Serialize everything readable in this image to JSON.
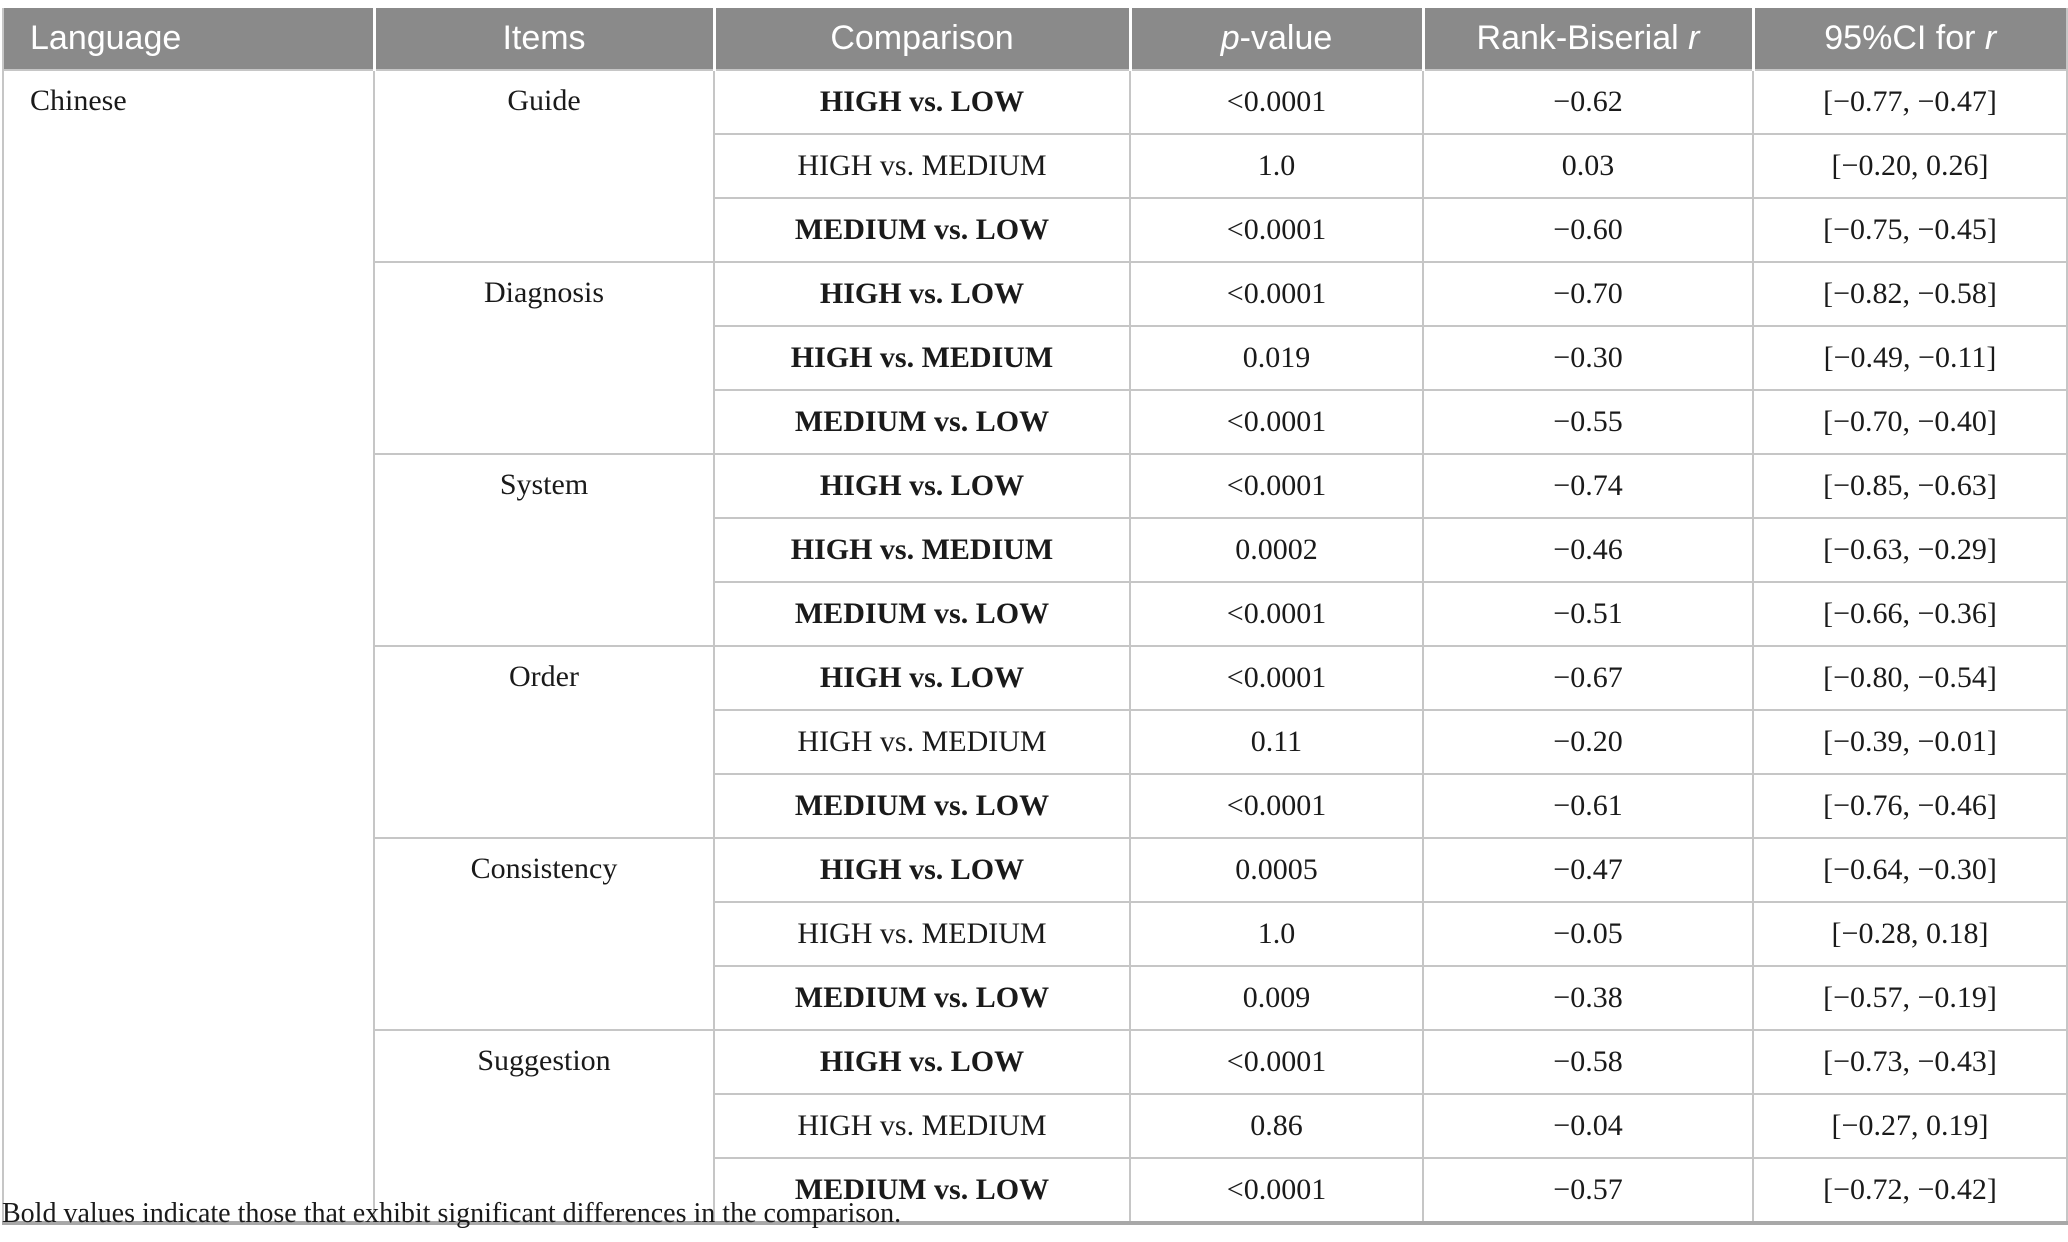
{
  "colors": {
    "header_bg": "#8a8a8a",
    "header_fg": "#ffffff",
    "grid": "#c6c6c6",
    "text": "#1a1a1a",
    "table_bottom_border": "#a8a8a8",
    "page_bg": "#ffffff"
  },
  "table": {
    "columns": [
      {
        "id": "language",
        "label": "Language"
      },
      {
        "id": "items",
        "label": "Items"
      },
      {
        "id": "comparison",
        "label": "Comparison"
      },
      {
        "id": "p-value",
        "label": "p-value",
        "segments": [
          {
            "text": "p",
            "italic": true
          },
          {
            "text": "-value"
          }
        ]
      },
      {
        "id": "rank-biserial-r",
        "label": "Rank-Biserial r",
        "segments": [
          {
            "text": "Rank-Biserial "
          },
          {
            "text": "r",
            "italic": true
          }
        ]
      },
      {
        "id": "ci-for-r",
        "label": "95%CI for r",
        "segments": [
          {
            "text": "95%CI for "
          },
          {
            "text": "r",
            "italic": true
          }
        ]
      }
    ],
    "language": "Chinese",
    "groups": [
      {
        "item": "Guide",
        "rows": [
          {
            "comparison": "HIGH vs. LOW",
            "bold": true,
            "p": "<0.0001",
            "r": "−0.62",
            "ci": "[−0.77, −0.47]"
          },
          {
            "comparison": "HIGH vs. MEDIUM",
            "bold": false,
            "p": "1.0",
            "r": "0.03",
            "ci": "[−0.20, 0.26]"
          },
          {
            "comparison": "MEDIUM vs. LOW",
            "bold": true,
            "p": "<0.0001",
            "r": "−0.60",
            "ci": "[−0.75, −0.45]"
          }
        ]
      },
      {
        "item": "Diagnosis",
        "rows": [
          {
            "comparison": "HIGH vs. LOW",
            "bold": true,
            "p": "<0.0001",
            "r": "−0.70",
            "ci": "[−0.82, −0.58]"
          },
          {
            "comparison": "HIGH vs. MEDIUM",
            "bold": true,
            "p": "0.019",
            "r": "−0.30",
            "ci": "[−0.49, −0.11]"
          },
          {
            "comparison": "MEDIUM vs. LOW",
            "bold": true,
            "p": "<0.0001",
            "r": "−0.55",
            "ci": "[−0.70, −0.40]"
          }
        ]
      },
      {
        "item": "System",
        "rows": [
          {
            "comparison": "HIGH vs. LOW",
            "bold": true,
            "p": "<0.0001",
            "r": "−0.74",
            "ci": "[−0.85, −0.63]"
          },
          {
            "comparison": "HIGH vs. MEDIUM",
            "bold": true,
            "p": "0.0002",
            "r": "−0.46",
            "ci": "[−0.63, −0.29]"
          },
          {
            "comparison": "MEDIUM vs. LOW",
            "bold": true,
            "p": "<0.0001",
            "r": "−0.51",
            "ci": "[−0.66, −0.36]"
          }
        ]
      },
      {
        "item": "Order",
        "rows": [
          {
            "comparison": "HIGH vs. LOW",
            "bold": true,
            "p": "<0.0001",
            "r": "−0.67",
            "ci": "[−0.80, −0.54]"
          },
          {
            "comparison": "HIGH vs. MEDIUM",
            "bold": false,
            "p": "0.11",
            "r": "−0.20",
            "ci": "[−0.39, −0.01]"
          },
          {
            "comparison": "MEDIUM vs. LOW",
            "bold": true,
            "p": "<0.0001",
            "r": "−0.61",
            "ci": "[−0.76, −0.46]"
          }
        ]
      },
      {
        "item": "Consistency",
        "rows": [
          {
            "comparison": "HIGH vs. LOW",
            "bold": true,
            "p": "0.0005",
            "r": "−0.47",
            "ci": "[−0.64, −0.30]"
          },
          {
            "comparison": "HIGH vs. MEDIUM",
            "bold": false,
            "p": "1.0",
            "r": "−0.05",
            "ci": "[−0.28, 0.18]"
          },
          {
            "comparison": "MEDIUM vs. LOW",
            "bold": true,
            "p": "0.009",
            "r": "−0.38",
            "ci": "[−0.57, −0.19]"
          }
        ]
      },
      {
        "item": "Suggestion",
        "rows": [
          {
            "comparison": "HIGH vs. LOW",
            "bold": true,
            "p": "<0.0001",
            "r": "−0.58",
            "ci": "[−0.73, −0.43]"
          },
          {
            "comparison": "HIGH vs. MEDIUM",
            "bold": false,
            "p": "0.86",
            "r": "−0.04",
            "ci": "[−0.27, 0.19]"
          },
          {
            "comparison": "MEDIUM vs. LOW",
            "bold": true,
            "p": "<0.0001",
            "r": "−0.57",
            "ci": "[−0.72, −0.42]"
          }
        ]
      }
    ]
  },
  "footnote": "Bold values indicate those that exhibit significant differences in the comparison."
}
